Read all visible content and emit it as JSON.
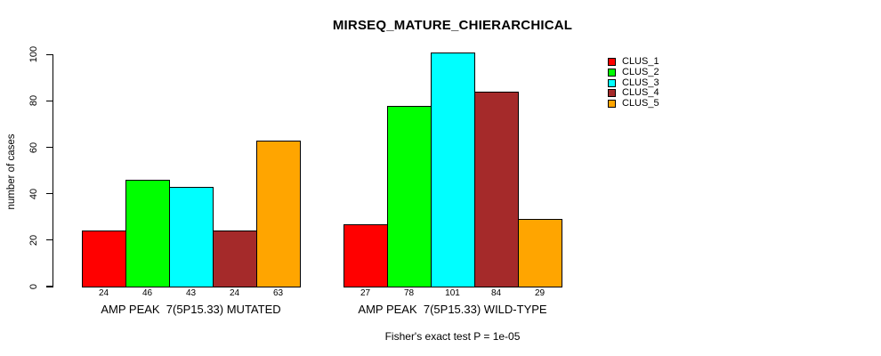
{
  "chart_data": {
    "type": "bar",
    "title": "MIRSEQ_MATURE_CHIERARCHICAL",
    "ylabel": "number of cases",
    "xlabel": "",
    "ylim": [
      0,
      100
    ],
    "yticks": [
      0,
      20,
      40,
      60,
      80,
      100
    ],
    "grid": false,
    "legend_position": "right-outside",
    "bar_value_labels_shown": true,
    "categories": [
      "AMP PEAK  7(5P15.33) MUTATED",
      "AMP PEAK  7(5P15.33) WILD-TYPE"
    ],
    "series": [
      {
        "name": "CLUS_1",
        "color": "#FF0000",
        "values": [
          24,
          27
        ]
      },
      {
        "name": "CLUS_2",
        "color": "#00FF00",
        "values": [
          46,
          78
        ]
      },
      {
        "name": "CLUS_3",
        "color": "#00FFFF",
        "values": [
          43,
          101
        ]
      },
      {
        "name": "CLUS_4",
        "color": "#A52A2A",
        "values": [
          24,
          84
        ]
      },
      {
        "name": "CLUS_5",
        "color": "#FFA500",
        "values": [
          63,
          29
        ]
      }
    ],
    "footnote": "Fisher's exact test P = 1e-05"
  }
}
